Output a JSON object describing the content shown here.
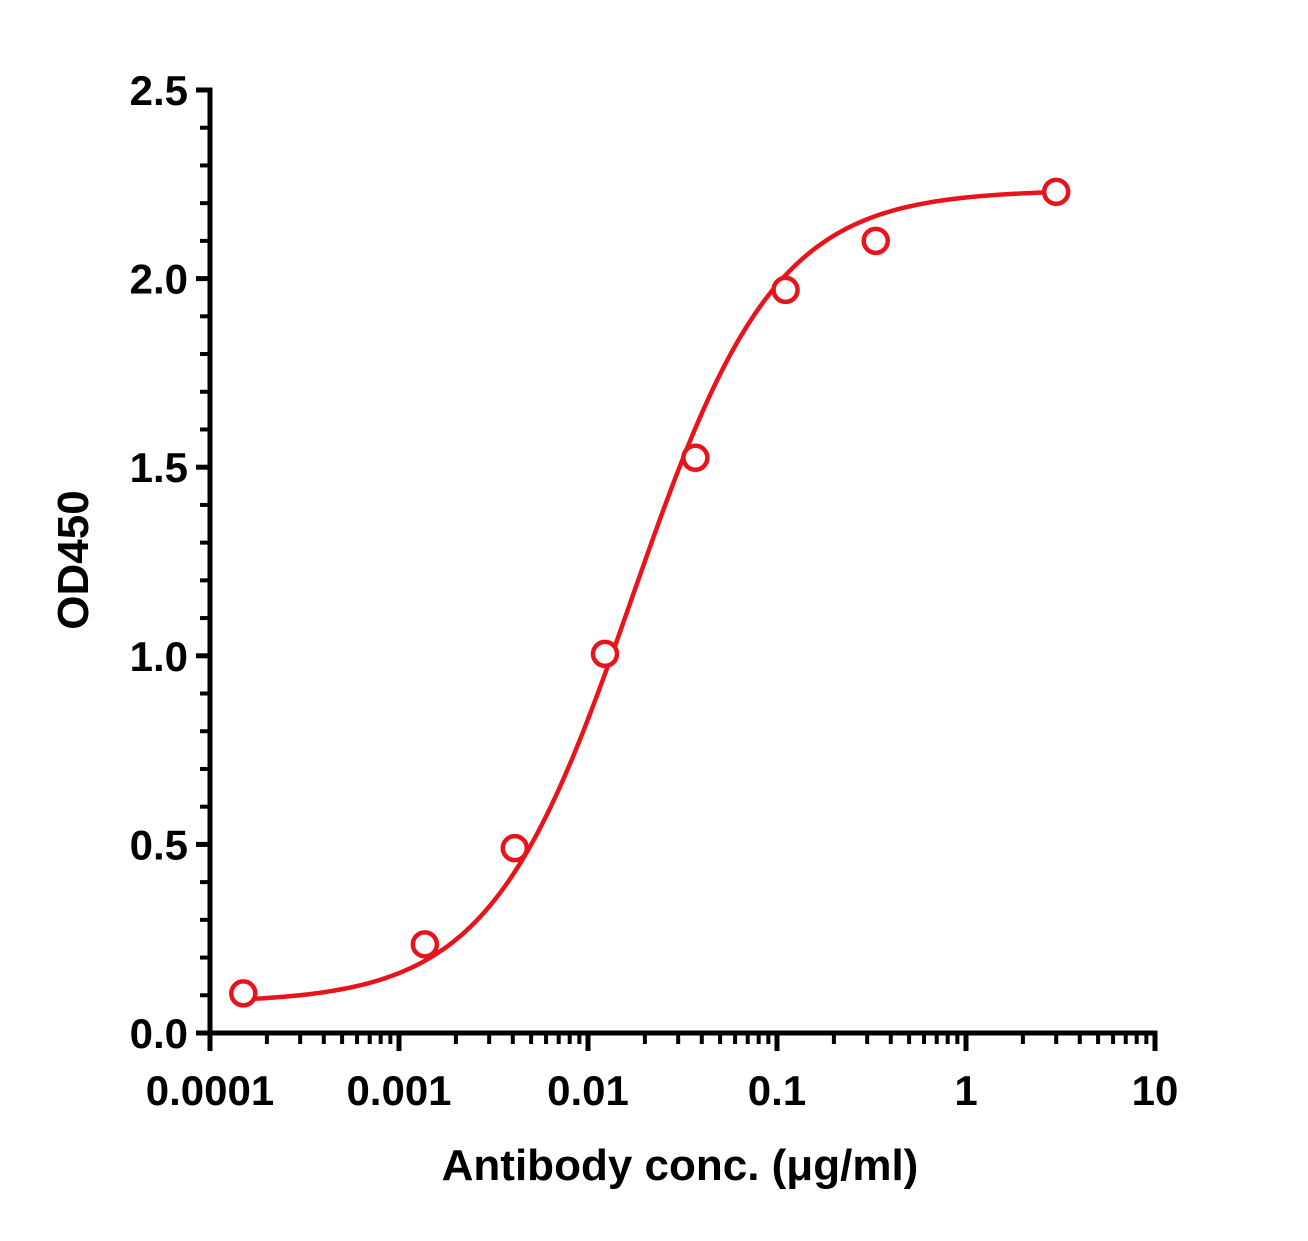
{
  "chart_data": {
    "type": "scatter",
    "title": "",
    "xlabel": "Antibody conc. (μg/ml)",
    "ylabel": "OD450",
    "x_scale": "log",
    "xlim": [
      0.0001,
      10
    ],
    "ylim": [
      0,
      2.5
    ],
    "x_ticks": [
      {
        "value": 0.0001,
        "label": "0.0001"
      },
      {
        "value": 0.001,
        "label": "0.001"
      },
      {
        "value": 0.01,
        "label": "0.01"
      },
      {
        "value": 0.1,
        "label": "0.1"
      },
      {
        "value": 1,
        "label": "1"
      },
      {
        "value": 10,
        "label": "10"
      }
    ],
    "y_ticks": [
      {
        "value": 0,
        "label": "0.0"
      },
      {
        "value": 0.5,
        "label": "0.5"
      },
      {
        "value": 1.0,
        "label": "1.0"
      },
      {
        "value": 1.5,
        "label": "1.5"
      },
      {
        "value": 2.0,
        "label": "2.0"
      },
      {
        "value": 2.5,
        "label": "2.5"
      }
    ],
    "grid": false,
    "legend": "none",
    "series": [
      {
        "color": "#e8141b",
        "marker": "open-circle",
        "fit": "four-parameter-logistic",
        "points": [
          {
            "x": 0.00015,
            "y": 0.105
          },
          {
            "x": 0.00137,
            "y": 0.235
          },
          {
            "x": 0.0041,
            "y": 0.49
          },
          {
            "x": 0.0123,
            "y": 1.005
          },
          {
            "x": 0.037,
            "y": 1.525
          },
          {
            "x": 0.111,
            "y": 1.97
          },
          {
            "x": 0.333,
            "y": 2.1
          },
          {
            "x": 3.0,
            "y": 2.23
          }
        ],
        "fit_params": {
          "bottom": 0.08,
          "top": 2.235,
          "ec50": 0.0172,
          "hill": 1.15
        }
      }
    ]
  }
}
